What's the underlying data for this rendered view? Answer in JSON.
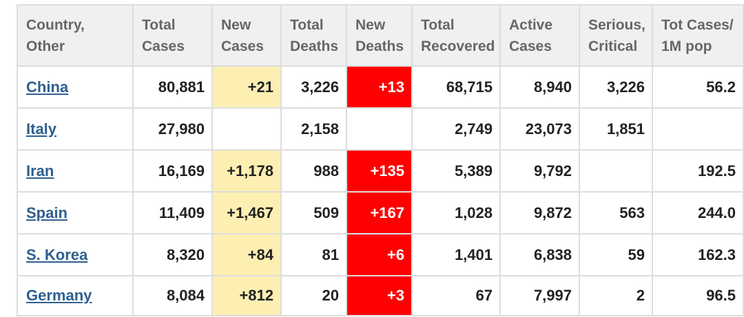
{
  "headers": [
    [
      "Country,",
      "Other"
    ],
    [
      "Total",
      "Cases"
    ],
    [
      "New",
      "Cases"
    ],
    [
      "Total",
      "Deaths"
    ],
    [
      "New",
      "Deaths"
    ],
    [
      "Total",
      "Recovered"
    ],
    [
      "Active",
      "Cases"
    ],
    [
      "Serious,",
      "Critical"
    ],
    [
      "Tot Cases/",
      "1M pop"
    ]
  ],
  "rows": [
    {
      "country": "China",
      "total_cases": "80,881",
      "new_cases": "+21",
      "total_deaths": "3,226",
      "new_deaths": "+13",
      "total_recovered": "68,715",
      "active_cases": "8,940",
      "serious_critical": "3,226",
      "per_million": "56.2"
    },
    {
      "country": "Italy",
      "total_cases": "27,980",
      "new_cases": "",
      "total_deaths": "2,158",
      "new_deaths": "",
      "total_recovered": "2,749",
      "active_cases": "23,073",
      "serious_critical": "1,851",
      "per_million": ""
    },
    {
      "country": "Iran",
      "total_cases": "16,169",
      "new_cases": "+1,178",
      "total_deaths": "988",
      "new_deaths": "+135",
      "total_recovered": "5,389",
      "active_cases": "9,792",
      "serious_critical": "",
      "per_million": "192.5"
    },
    {
      "country": "Spain",
      "total_cases": "11,409",
      "new_cases": "+1,467",
      "total_deaths": "509",
      "new_deaths": "+167",
      "total_recovered": "1,028",
      "active_cases": "9,872",
      "serious_critical": "563",
      "per_million": "244.0"
    },
    {
      "country": "S. Korea",
      "total_cases": "8,320",
      "new_cases": "+84",
      "total_deaths": "81",
      "new_deaths": "+6",
      "total_recovered": "1,401",
      "active_cases": "6,838",
      "serious_critical": "59",
      "per_million": "162.3"
    },
    {
      "country": "Germany",
      "total_cases": "8,084",
      "new_cases": "+812",
      "total_deaths": "20",
      "new_deaths": "+3",
      "total_recovered": "67",
      "active_cases": "7,997",
      "serious_critical": "2",
      "per_million": "96.5"
    }
  ],
  "colors": {
    "new_cases_highlight": "#fdefb2",
    "new_deaths_highlight": "#ff0000",
    "link": "#2f5f8f",
    "header_bg": "#f0f0f0"
  }
}
